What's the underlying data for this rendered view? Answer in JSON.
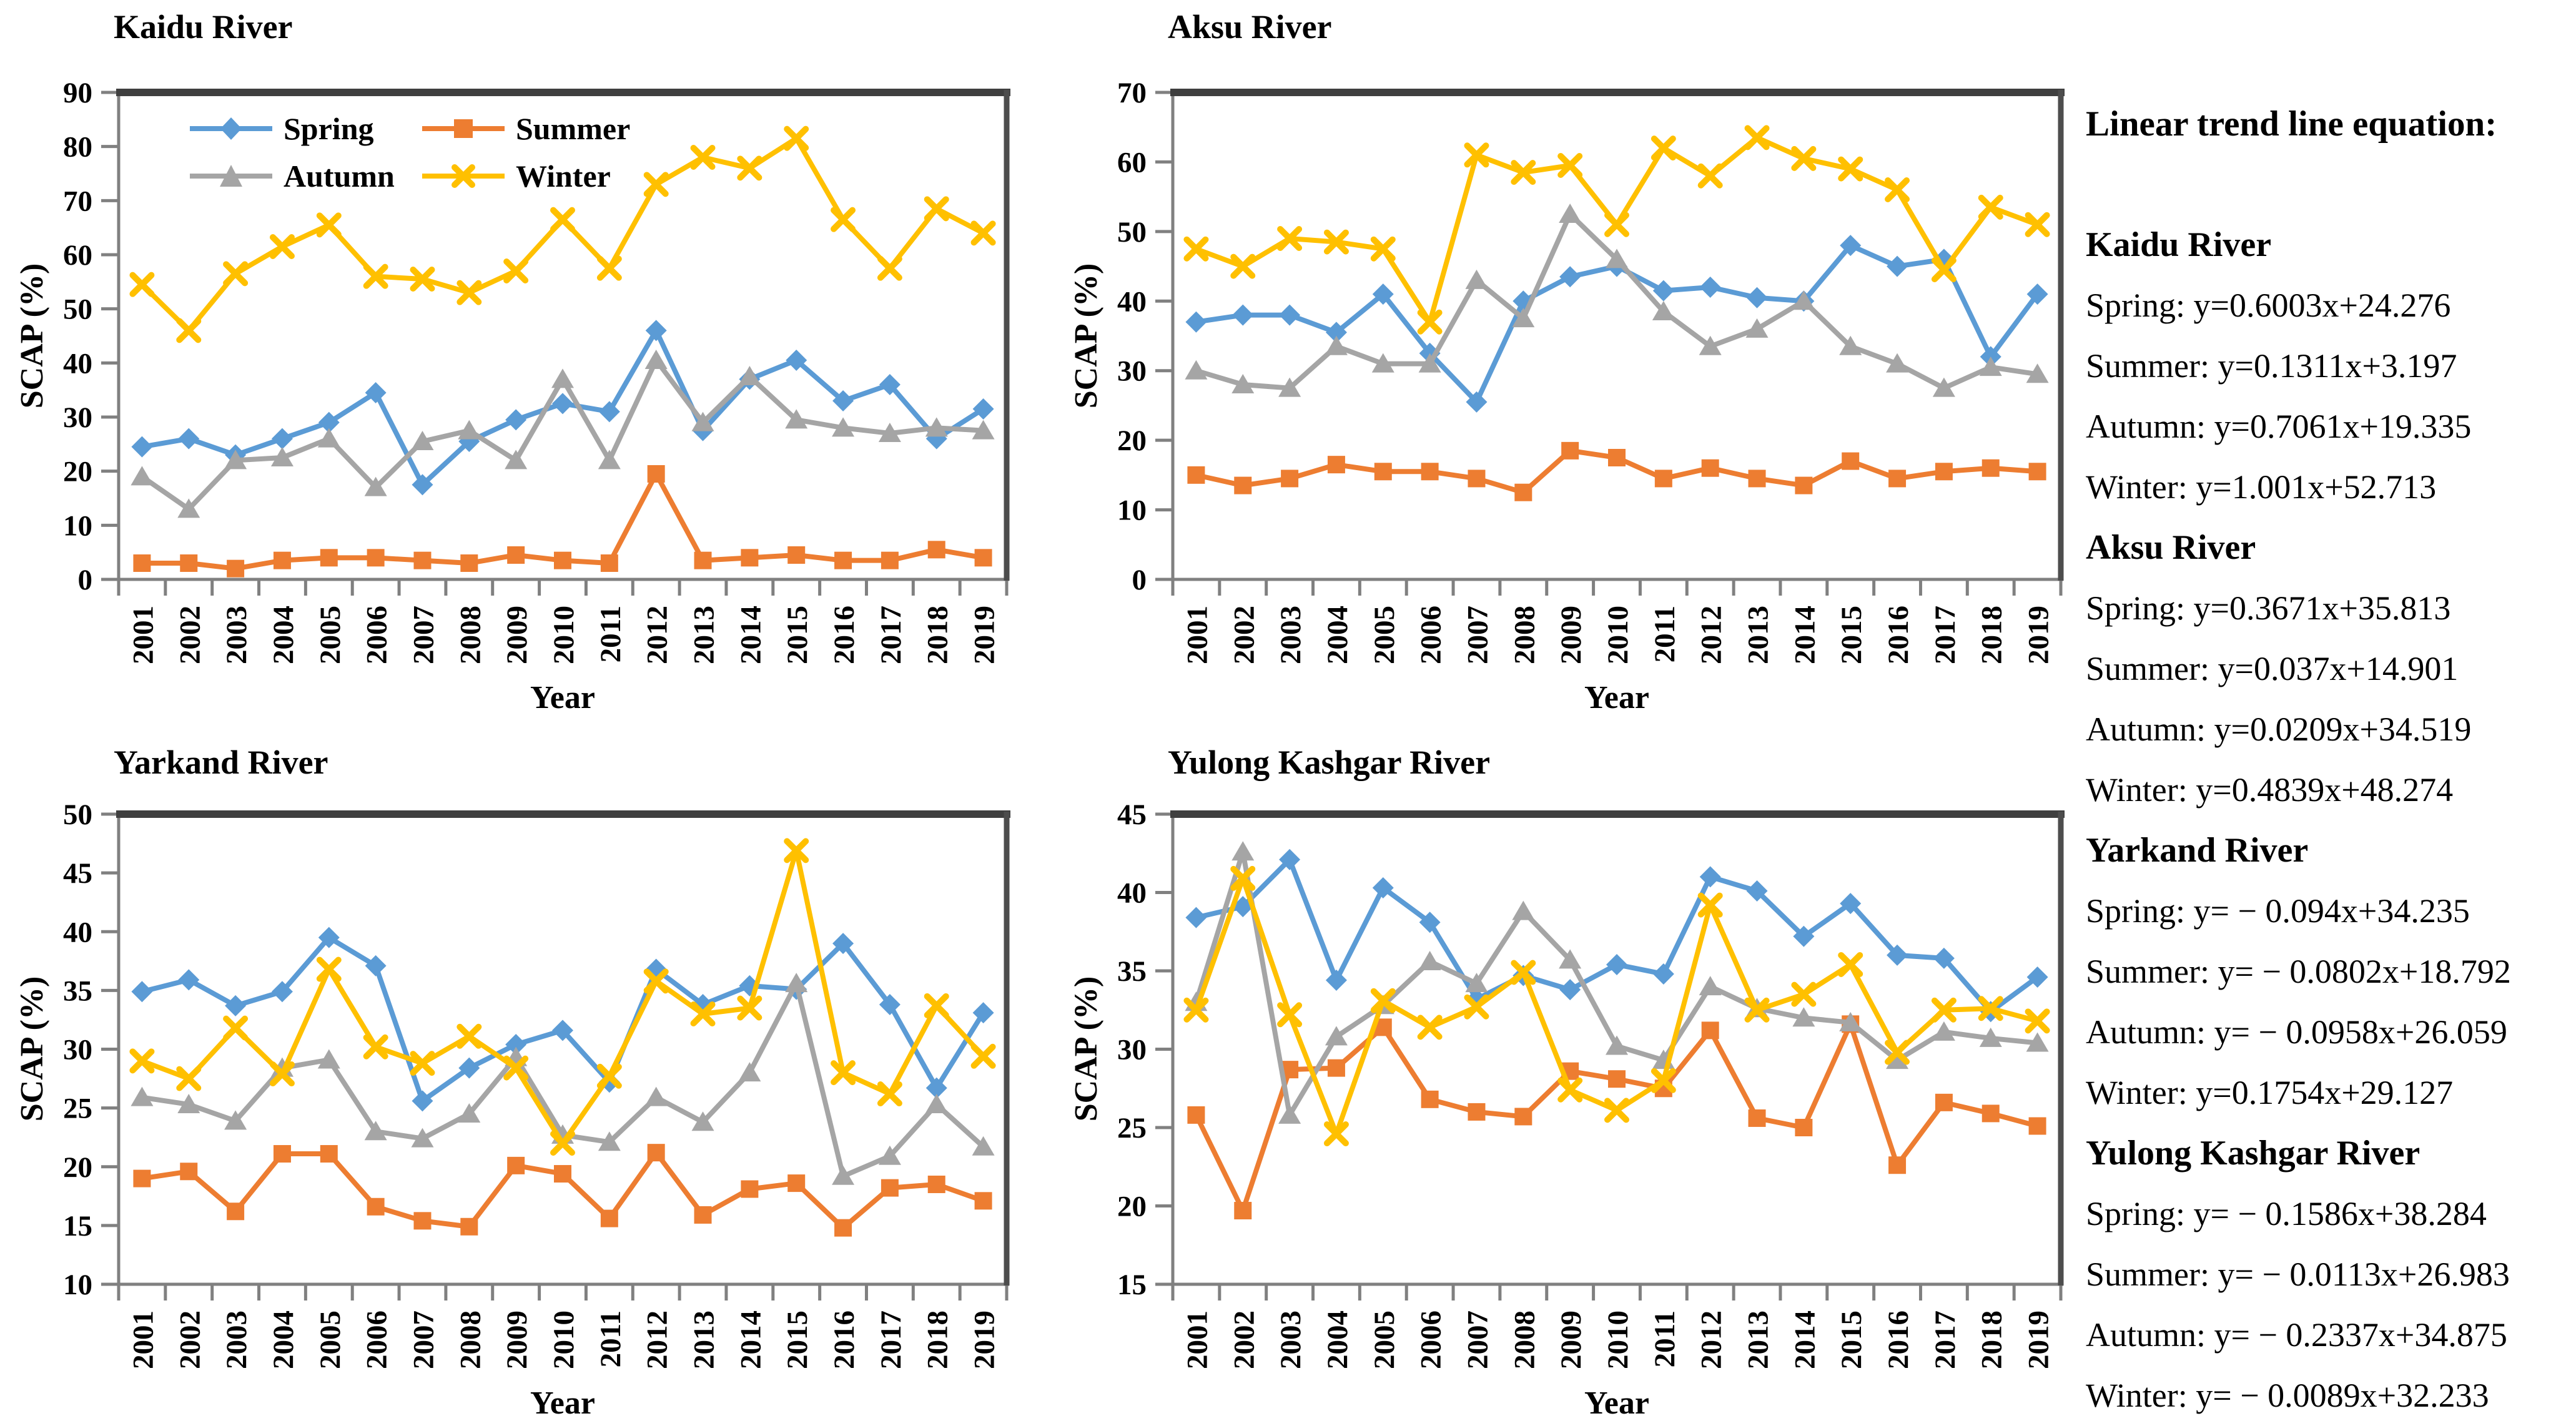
{
  "figure": {
    "x_axis_label": "Year",
    "y_axis_label": "SCAP (%)"
  },
  "legend": {
    "items": [
      {
        "label": "Spring",
        "color": "#5B9BD5",
        "marker": "diamond"
      },
      {
        "label": "Summer",
        "color": "#ED7D31",
        "marker": "square"
      },
      {
        "label": "Autumn",
        "color": "#A5A5A5",
        "marker": "triangle"
      },
      {
        "label": "Winter",
        "color": "#FFC000",
        "marker": "x"
      }
    ]
  },
  "equations": {
    "title": "Linear trend line equation:",
    "groups": [
      {
        "river": "Kaidu River",
        "lines": [
          "Spring: y=0.6003x+24.276",
          "Summer: y=0.1311x+3.197",
          "Autumn: y=0.7061x+19.335",
          "Winter: y=1.001x+52.713"
        ]
      },
      {
        "river": "Aksu River",
        "lines": [
          "Spring: y=0.3671x+35.813",
          "Summer: y=0.037x+14.901",
          "Autumn: y=0.0209x+34.519",
          "Winter: y=0.4839x+48.274"
        ]
      },
      {
        "river": "Yarkand River",
        "lines": [
          "Spring: y= − 0.094x+34.235",
          "Summer: y= − 0.0802x+18.792",
          "Autumn: y= − 0.0958x+26.059",
          "Winter: y=0.1754x+29.127"
        ]
      },
      {
        "river": "Yulong Kashgar River",
        "lines": [
          "Spring: y= − 0.1586x+38.284",
          "Summer: y= − 0.0113x+26.983",
          "Autumn: y= − 0.2337x+34.875",
          "Winter: y= − 0.0089x+32.233"
        ]
      }
    ]
  },
  "chart_data": [
    {
      "type": "line",
      "title": "Kaidu River",
      "xlabel": "Year",
      "ylabel": "SCAP (%)",
      "ylim": [
        0,
        90
      ],
      "ytick_step": 10,
      "grid": false,
      "legend_position": "top-left-inside",
      "categories": [
        "2001",
        "2002",
        "2003",
        "2004",
        "2005",
        "2006",
        "2007",
        "2008",
        "2009",
        "2010",
        "2011",
        "2012",
        "2013",
        "2014",
        "2015",
        "2016",
        "2017",
        "2018",
        "2019"
      ],
      "series": [
        {
          "name": "Spring",
          "color": "#5B9BD5",
          "marker": "diamond",
          "values": [
            24.5,
            26,
            23,
            26,
            29,
            34.5,
            17.5,
            25.5,
            29.5,
            32.5,
            31,
            46,
            27.5,
            37,
            40.5,
            33,
            36,
            26,
            31.5
          ]
        },
        {
          "name": "Summer",
          "color": "#ED7D31",
          "marker": "square",
          "values": [
            3,
            3,
            2,
            3.5,
            4,
            4,
            3.5,
            3,
            4.5,
            3.5,
            3,
            19.5,
            3.5,
            4,
            4.5,
            3.5,
            3.5,
            5.5,
            4
          ]
        },
        {
          "name": "Autumn",
          "color": "#A5A5A5",
          "marker": "triangle",
          "values": [
            19,
            13,
            22,
            22.5,
            26,
            17,
            25.5,
            27.5,
            22,
            37,
            22,
            40.5,
            29,
            37.5,
            29.5,
            28,
            27,
            28,
            27.5
          ]
        },
        {
          "name": "Winter",
          "color": "#FFC000",
          "marker": "x",
          "values": [
            54.5,
            46,
            56.5,
            61.5,
            65.5,
            56,
            55.5,
            53,
            57,
            66.5,
            57.5,
            73,
            78,
            76,
            81.5,
            66.5,
            57.5,
            68.5,
            64
          ]
        }
      ]
    },
    {
      "type": "line",
      "title": "Aksu River",
      "xlabel": "Year",
      "ylabel": "SCAP (%)",
      "ylim": [
        0,
        70
      ],
      "ytick_step": 10,
      "grid": false,
      "categories": [
        "2001",
        "2002",
        "2003",
        "2004",
        "2005",
        "2006",
        "2007",
        "2008",
        "2009",
        "2010",
        "2011",
        "2012",
        "2013",
        "2014",
        "2015",
        "2016",
        "2017",
        "2018",
        "2019"
      ],
      "series": [
        {
          "name": "Spring",
          "color": "#5B9BD5",
          "marker": "diamond",
          "values": [
            37,
            38,
            38,
            35.5,
            41,
            32.5,
            25.5,
            40,
            43.5,
            45,
            41.5,
            42,
            40.5,
            40,
            48,
            45,
            46,
            32,
            41
          ]
        },
        {
          "name": "Summer",
          "color": "#ED7D31",
          "marker": "square",
          "values": [
            15,
            13.5,
            14.5,
            16.5,
            15.5,
            15.5,
            14.5,
            12.5,
            18.5,
            17.5,
            14.5,
            16,
            14.5,
            13.5,
            17,
            14.5,
            15.5,
            16,
            15.5
          ]
        },
        {
          "name": "Autumn",
          "color": "#A5A5A5",
          "marker": "triangle",
          "values": [
            30,
            28,
            27.5,
            33.5,
            31,
            31,
            43,
            37.5,
            52.5,
            46,
            38.5,
            33.5,
            36,
            40,
            33.5,
            31,
            27.5,
            30.5,
            29.5
          ]
        },
        {
          "name": "Winter",
          "color": "#FFC000",
          "marker": "x",
          "values": [
            47.5,
            45,
            49,
            48.5,
            47.5,
            37,
            61,
            58.5,
            59.5,
            51,
            62,
            58,
            63.5,
            60.5,
            59,
            56,
            44.5,
            53.5,
            51
          ]
        }
      ]
    },
    {
      "type": "line",
      "title": "Yarkand River",
      "xlabel": "Year",
      "ylabel": "SCAP (%)",
      "ylim": [
        10,
        50
      ],
      "ytick_step": 5,
      "grid": false,
      "categories": [
        "2001",
        "2002",
        "2003",
        "2004",
        "2005",
        "2006",
        "2007",
        "2008",
        "2009",
        "2010",
        "2011",
        "2012",
        "2013",
        "2014",
        "2015",
        "2016",
        "2017",
        "2018",
        "2019"
      ],
      "series": [
        {
          "name": "Spring",
          "color": "#5B9BD5",
          "marker": "diamond",
          "values": [
            34.9,
            35.9,
            33.7,
            34.9,
            39.5,
            37.1,
            25.6,
            28.4,
            30.4,
            31.6,
            27.2,
            36.8,
            33.8,
            35.4,
            35.1,
            39,
            33.8,
            26.7,
            33.1
          ]
        },
        {
          "name": "Summer",
          "color": "#ED7D31",
          "marker": "square",
          "values": [
            19,
            19.6,
            16.2,
            21.1,
            21.1,
            16.6,
            15.4,
            14.9,
            20.1,
            19.4,
            15.6,
            21.2,
            15.9,
            18.1,
            18.6,
            14.8,
            18.2,
            18.5,
            17.1
          ]
        },
        {
          "name": "Autumn",
          "color": "#A5A5A5",
          "marker": "triangle",
          "values": [
            25.9,
            25.3,
            23.9,
            28.4,
            29.1,
            23,
            22.4,
            24.5,
            29.3,
            22.7,
            22.1,
            25.9,
            23.8,
            28,
            35.6,
            19.2,
            20.9,
            25.3,
            21.7
          ]
        },
        {
          "name": "Winter",
          "color": "#FFC000",
          "marker": "x",
          "values": [
            29,
            27.5,
            31.8,
            27.9,
            36.8,
            30.2,
            28.8,
            31.1,
            28.4,
            22,
            27.7,
            35.8,
            33,
            33.5,
            46.9,
            28,
            26.2,
            33.7,
            29.4
          ]
        }
      ]
    },
    {
      "type": "line",
      "title": "Yulong Kashgar River",
      "xlabel": "Year",
      "ylabel": "SCAP (%)",
      "ylim": [
        15,
        45
      ],
      "ytick_step": 5,
      "grid": false,
      "categories": [
        "2001",
        "2002",
        "2003",
        "2004",
        "2005",
        "2006",
        "2007",
        "2008",
        "2009",
        "2010",
        "2011",
        "2012",
        "2013",
        "2014",
        "2015",
        "2016",
        "2017",
        "2018",
        "2019"
      ],
      "series": [
        {
          "name": "Spring",
          "color": "#5B9BD5",
          "marker": "diamond",
          "values": [
            38.4,
            39.1,
            42.1,
            34.4,
            40.3,
            38.1,
            33.2,
            34.7,
            33.8,
            35.4,
            34.8,
            41,
            40.1,
            37.2,
            39.3,
            36,
            35.8,
            32.4,
            34.6
          ]
        },
        {
          "name": "Summer",
          "color": "#ED7D31",
          "marker": "square",
          "values": [
            25.8,
            19.7,
            28.7,
            28.8,
            31.4,
            26.8,
            26,
            25.7,
            28.6,
            28.1,
            27.5,
            31.2,
            25.6,
            25,
            31.6,
            22.6,
            26.6,
            25.9,
            25.1
          ]
        },
        {
          "name": "Autumn",
          "color": "#A5A5A5",
          "marker": "triangle",
          "values": [
            33,
            42.6,
            25.8,
            30.8,
            32.8,
            35.6,
            34.2,
            38.8,
            35.7,
            30.2,
            29.3,
            34,
            32.6,
            32,
            31.7,
            29.3,
            31.1,
            30.7,
            30.4
          ]
        },
        {
          "name": "Winter",
          "color": "#FFC000",
          "marker": "x",
          "values": [
            32.5,
            40.9,
            32.2,
            24.6,
            33.1,
            31.4,
            32.7,
            34.9,
            27.4,
            26.1,
            28,
            39.2,
            32.5,
            33.5,
            35.4,
            29.8,
            32.5,
            32.6,
            31.8
          ]
        }
      ]
    }
  ]
}
